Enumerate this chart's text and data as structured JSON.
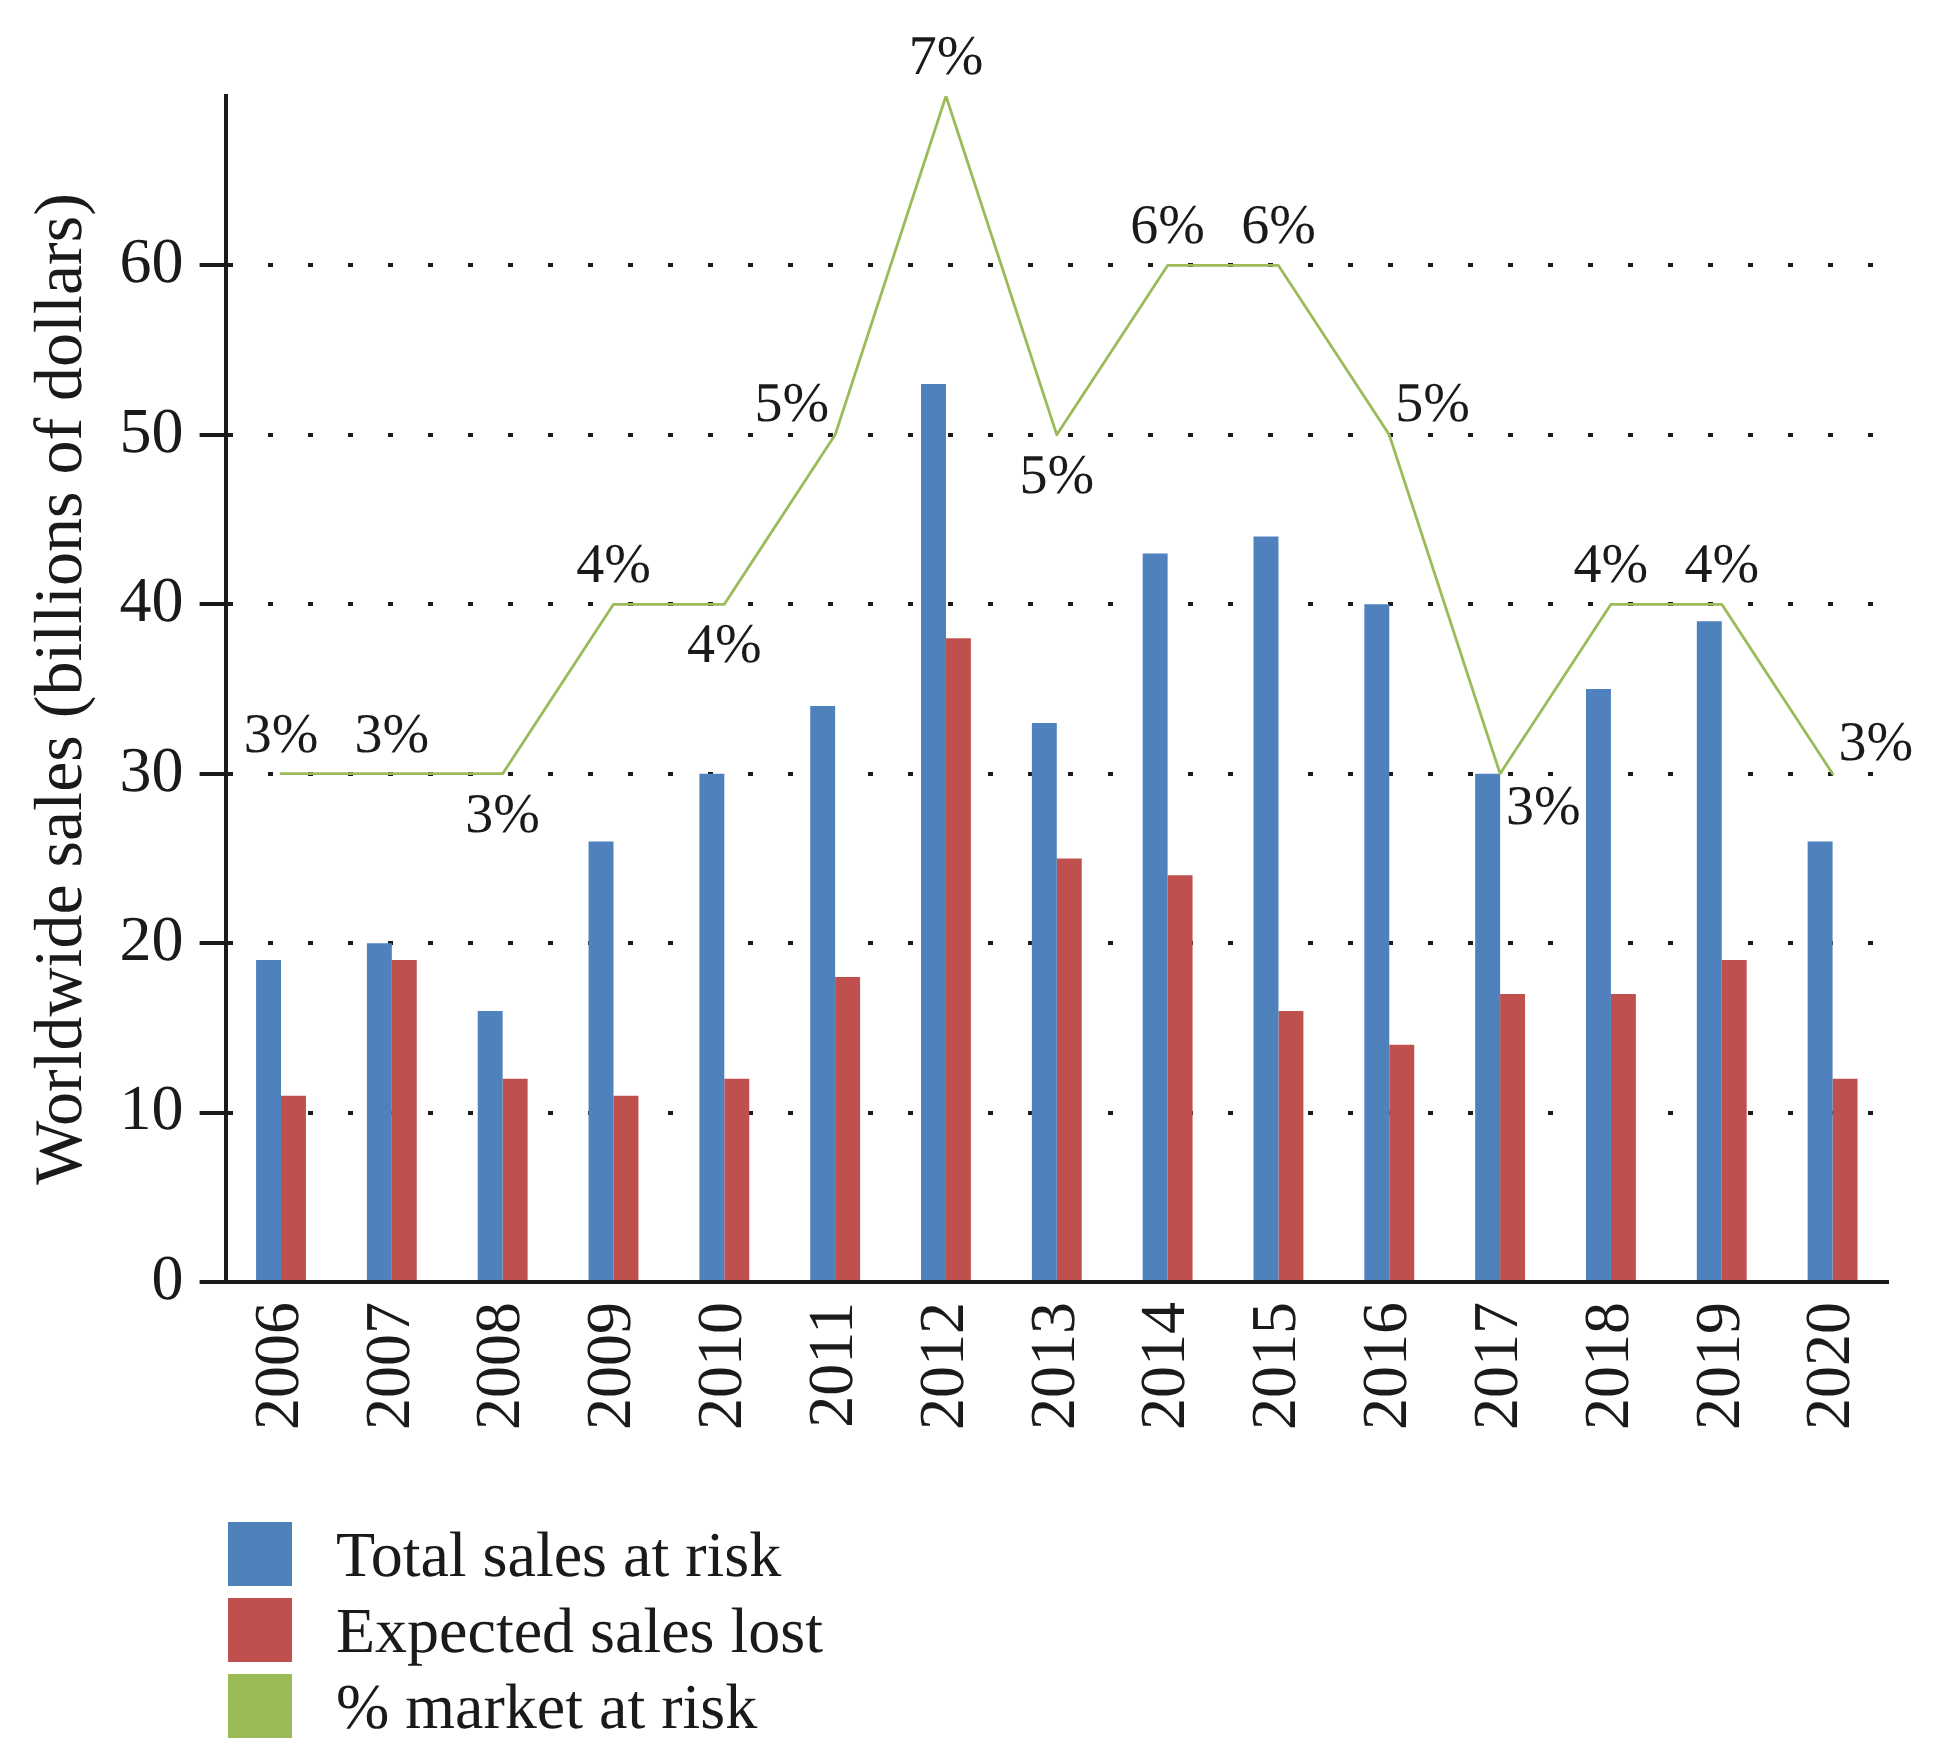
{
  "chart_data": {
    "type": "bar",
    "ylabel": "Worldwide sales (billions of dollars)",
    "categories": [
      "2006",
      "2007",
      "2008",
      "2009",
      "2010",
      "2011",
      "2012",
      "2013",
      "2014",
      "2015",
      "2016",
      "2017",
      "2018",
      "2019",
      "2020"
    ],
    "series": [
      {
        "name": "Total sales at risk",
        "color": "#4f81bd",
        "values": [
          19,
          20,
          16,
          26,
          30,
          34,
          53,
          33,
          43,
          44,
          40,
          30,
          35,
          39,
          26
        ]
      },
      {
        "name": "Expected sales lost",
        "color": "#c0504d",
        "values": [
          11,
          19,
          12,
          11,
          12,
          18,
          38,
          25,
          24,
          16,
          14,
          17,
          17,
          19,
          12
        ]
      },
      {
        "name": "% market at risk",
        "type": "line",
        "axis": "y2",
        "color": "#9bbb59",
        "values": [
          3,
          3,
          3,
          4,
          4,
          5,
          7,
          5,
          6,
          6,
          5,
          3,
          4,
          4,
          3
        ],
        "value_labels": [
          "3%",
          "3%",
          "3%",
          "4%",
          "4%",
          "5%",
          "7%",
          "5%",
          "6%",
          "6%",
          "5%",
          "3%",
          "4%",
          "4%",
          "3%"
        ]
      }
    ],
    "ylim": [
      0,
      70
    ],
    "yticks": [
      0,
      10,
      20,
      30,
      40,
      50,
      60
    ],
    "y2lim": [
      0,
      7
    ],
    "grid": "y",
    "legend": "bottom left"
  }
}
